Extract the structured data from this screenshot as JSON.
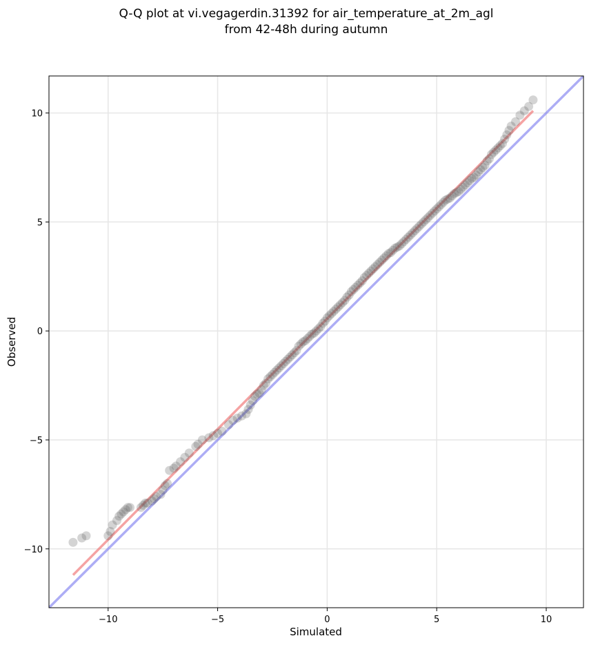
{
  "chart_data": {
    "type": "scatter",
    "title": "Q-Q plot at vi.vegagerdin.31392 for air_temperature_at_2m_agl",
    "subtitle": "from 42-48h during autumn",
    "xlabel": "Simulated",
    "ylabel": "Observed",
    "xlim": [
      -12.7,
      11.7
    ],
    "ylim": [
      -12.7,
      11.7
    ],
    "x_ticks": [
      -10,
      -5,
      0,
      5,
      10
    ],
    "y_ticks": [
      -10,
      -5,
      0,
      5,
      10
    ],
    "x_tick_labels": [
      "−10",
      "−5",
      "0",
      "5",
      "10"
    ],
    "y_tick_labels": [
      "−10",
      "−5",
      "0",
      "5",
      "10"
    ],
    "grid": true,
    "colors": {
      "points": "#555555",
      "identity_line": "#7777ee",
      "fit_line": "#ee6666",
      "grid": "#e6e6e6"
    },
    "series": [
      {
        "kind": "points",
        "x": [
          -11.6,
          -11.2,
          -11.0,
          -10.0,
          -9.9,
          -9.8,
          -9.6,
          -9.5,
          -9.4,
          -9.3,
          -9.2,
          -9.1,
          -9.0,
          -8.5,
          -8.4,
          -8.3,
          -8.2,
          -8.0,
          -7.9,
          -7.8,
          -7.6,
          -7.5,
          -7.4,
          -7.3,
          -7.2,
          -7.0,
          -6.9,
          -6.7,
          -6.5,
          -6.3,
          -6.0,
          -5.9,
          -5.7,
          -5.4,
          -5.2,
          -5.0,
          -4.8,
          -4.5,
          -4.3,
          -4.1,
          -3.9,
          -3.7,
          -3.6,
          -3.5,
          -3.4,
          -3.3,
          -3.2,
          -3.1,
          -3.0,
          -2.9,
          -2.8,
          -2.7,
          -2.6,
          -2.5,
          -2.4,
          -2.3,
          -2.2,
          -2.1,
          -2.0,
          -1.9,
          -1.8,
          -1.7,
          -1.6,
          -1.5,
          -1.4,
          -1.3,
          -1.2,
          -1.1,
          -1.0,
          -0.9,
          -0.8,
          -0.7,
          -0.6,
          -0.5,
          -0.4,
          -0.3,
          -0.2,
          -0.1,
          0.0,
          0.1,
          0.2,
          0.3,
          0.4,
          0.5,
          0.6,
          0.7,
          0.8,
          0.9,
          1.0,
          1.1,
          1.2,
          1.3,
          1.4,
          1.5,
          1.6,
          1.7,
          1.8,
          1.9,
          2.0,
          2.1,
          2.2,
          2.3,
          2.4,
          2.5,
          2.6,
          2.7,
          2.8,
          2.9,
          3.0,
          3.1,
          3.2,
          3.3,
          3.4,
          3.5,
          3.6,
          3.7,
          3.8,
          3.9,
          4.0,
          4.1,
          4.2,
          4.3,
          4.4,
          4.5,
          4.6,
          4.7,
          4.8,
          4.9,
          5.0,
          5.1,
          5.2,
          5.3,
          5.4,
          5.5,
          5.6,
          5.7,
          5.8,
          5.9,
          6.0,
          6.1,
          6.2,
          6.3,
          6.4,
          6.5,
          6.6,
          6.7,
          6.8,
          6.9,
          7.0,
          7.1,
          7.2,
          7.3,
          7.4,
          7.5,
          7.6,
          7.7,
          7.8,
          7.9,
          8.0,
          8.1,
          8.2,
          8.3,
          8.4,
          8.6,
          8.8,
          9.0,
          9.2,
          9.4
        ],
        "y": [
          -9.7,
          -9.5,
          -9.4,
          -9.4,
          -9.2,
          -8.9,
          -8.7,
          -8.5,
          -8.4,
          -8.3,
          -8.2,
          -8.1,
          -8.1,
          -8.1,
          -8.0,
          -7.9,
          -7.9,
          -7.8,
          -7.7,
          -7.6,
          -7.5,
          -7.3,
          -7.1,
          -7.0,
          -6.4,
          -6.3,
          -6.2,
          -6.0,
          -5.8,
          -5.6,
          -5.3,
          -5.2,
          -5.0,
          -4.9,
          -4.8,
          -4.7,
          -4.6,
          -4.3,
          -4.1,
          -4.0,
          -3.9,
          -3.8,
          -3.6,
          -3.4,
          -3.2,
          -3.0,
          -2.9,
          -2.85,
          -2.7,
          -2.5,
          -2.4,
          -2.2,
          -2.1,
          -2.0,
          -1.9,
          -1.8,
          -1.7,
          -1.6,
          -1.5,
          -1.4,
          -1.3,
          -1.2,
          -1.1,
          -1.0,
          -0.9,
          -0.7,
          -0.6,
          -0.5,
          -0.45,
          -0.35,
          -0.25,
          -0.15,
          -0.1,
          0.0,
          0.1,
          0.2,
          0.35,
          0.45,
          0.6,
          0.7,
          0.8,
          0.9,
          1.0,
          1.1,
          1.2,
          1.3,
          1.4,
          1.55,
          1.65,
          1.8,
          1.9,
          2.0,
          2.1,
          2.2,
          2.3,
          2.45,
          2.55,
          2.65,
          2.75,
          2.85,
          2.95,
          3.05,
          3.15,
          3.25,
          3.35,
          3.45,
          3.55,
          3.6,
          3.7,
          3.8,
          3.85,
          3.9,
          4.0,
          4.1,
          4.2,
          4.3,
          4.4,
          4.5,
          4.6,
          4.7,
          4.8,
          4.9,
          5.0,
          5.1,
          5.2,
          5.3,
          5.4,
          5.5,
          5.6,
          5.7,
          5.8,
          5.9,
          6.0,
          6.05,
          6.1,
          6.2,
          6.3,
          6.35,
          6.4,
          6.5,
          6.6,
          6.7,
          6.8,
          6.9,
          7.0,
          7.05,
          7.15,
          7.3,
          7.4,
          7.5,
          7.6,
          7.8,
          7.9,
          8.1,
          8.2,
          8.3,
          8.4,
          8.5,
          8.6,
          8.8,
          9.0,
          9.2,
          9.4,
          9.6,
          9.9,
          10.1,
          10.3,
          10.6
        ]
      },
      {
        "kind": "identity_line",
        "x": [
          -12.7,
          11.7
        ],
        "y": [
          -12.7,
          11.7
        ]
      },
      {
        "kind": "fit_line",
        "x": [
          -11.6,
          9.4
        ],
        "y": [
          -11.2,
          10.1
        ]
      }
    ]
  }
}
